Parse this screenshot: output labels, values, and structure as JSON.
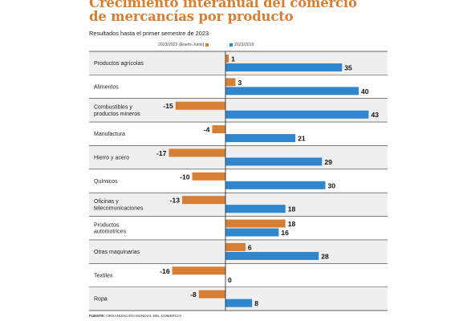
{
  "title_line1": "Crecimiento interanual del comercio",
  "title_line2": "de mercancías por producto",
  "subtitle": "Resultados hasta el primer semestre de 2023",
  "footer_label": "FUENTE:",
  "footer_text": "ORGANIZACIÓN MUNDIAL DEL COMERCIO",
  "colors": {
    "orange": "#d67e33",
    "blue": "#2f86cd",
    "band": "#efefef",
    "title": "#d67e33"
  },
  "chart_data": {
    "type": "bar",
    "orientation": "horizontal",
    "categories": [
      "Productos agrícolas",
      "Alimentos",
      "Combustibles y productos mineros",
      "Manufactura",
      "Hierro y acero",
      "Químicos",
      "Oficinas y telecomunicaciones",
      "Productos automotrices",
      "Otras maquinarias",
      "Textiles",
      "Ropa"
    ],
    "category_lines": [
      [
        "Productos agrícolas"
      ],
      [
        "Alimentos"
      ],
      [
        "Combustibles y",
        "productos mineros"
      ],
      [
        "Manufactura"
      ],
      [
        "Hierro y acero"
      ],
      [
        "Químicos"
      ],
      [
        "Oficinas y",
        "telecomunicaciones"
      ],
      [
        "Productos",
        "automotrices"
      ],
      [
        "Otras maquinarias"
      ],
      [
        "Textiles"
      ],
      [
        "Ropa"
      ]
    ],
    "series": [
      {
        "name": "2023/2022 (Enero-Junio)",
        "color": "#d67e33",
        "values": [
          1,
          3,
          -15,
          -4,
          -17,
          -10,
          -13,
          18,
          6,
          -16,
          -8
        ]
      },
      {
        "name": "2023/2019",
        "color": "#2f86cd",
        "values": [
          35,
          40,
          43,
          21,
          29,
          30,
          18,
          16,
          28,
          0,
          8
        ]
      }
    ],
    "grid": false,
    "legend_position": "top"
  }
}
